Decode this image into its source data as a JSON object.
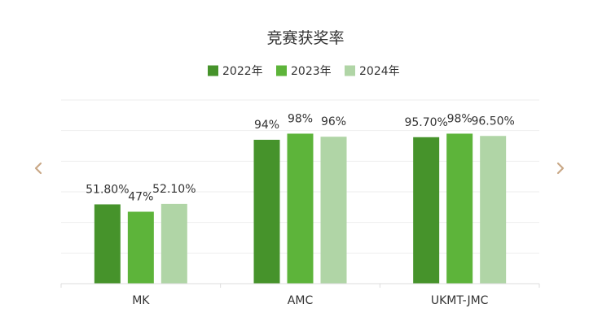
{
  "chart_data": {
    "type": "bar",
    "title": "竞赛获奖率",
    "categories": [
      "MK",
      "AMC",
      "UKMT-JMC"
    ],
    "series": [
      {
        "name": "2022年",
        "values": [
          51.8,
          94,
          95.7
        ],
        "labels": [
          "51.80%",
          "94%",
          "95.70%"
        ],
        "color": "#46932b"
      },
      {
        "name": "2023年",
        "values": [
          47,
          98,
          98
        ],
        "labels": [
          "47%",
          "98%",
          "98%"
        ],
        "color": "#5db43a"
      },
      {
        "name": "2024年",
        "values": [
          52.1,
          96,
          96.5
        ],
        "labels": [
          "52.10%",
          "96%",
          "96.50%"
        ],
        "color": "#b0d5a6"
      }
    ],
    "ylim": [
      0,
      120
    ],
    "y_ticks_shown": false,
    "grid": true,
    "legend_position": "top-center",
    "xlabel": "",
    "ylabel": ""
  },
  "nav": {
    "prev_icon": "chevron-left-icon",
    "next_icon": "chevron-right-icon",
    "arrow_color": "#c9a886"
  },
  "colors": {
    "grid": "#eeeeee",
    "axis": "#dddddd",
    "text": "#333333"
  }
}
